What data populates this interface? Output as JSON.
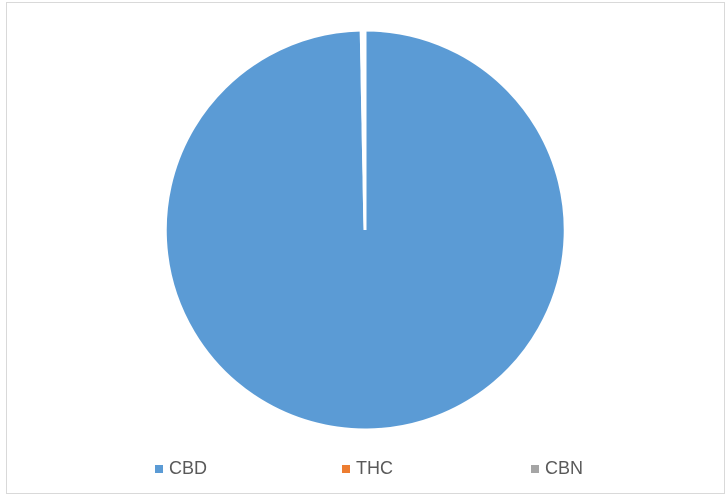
{
  "chart_data": {
    "type": "pie",
    "title": "",
    "categories": [
      "CBD",
      "THC",
      "CBN"
    ],
    "values": [
      99.7,
      0.2,
      0.1
    ],
    "colors": [
      "#5b9bd5",
      "#ed7d31",
      "#a5a5a5"
    ],
    "legend": "bottom",
    "start_angle_deg": 0,
    "slice_border_color": "#ffffff"
  }
}
